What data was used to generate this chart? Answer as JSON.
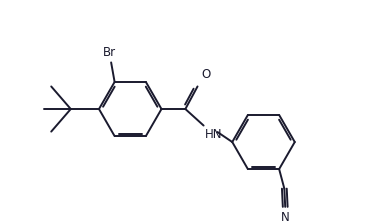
{
  "bg_color": "#ffffff",
  "line_color": "#1a1a2e",
  "line_width": 1.4,
  "dbo": 0.055,
  "font_size": 8.5,
  "figsize": [
    3.69,
    2.24
  ],
  "dpi": 100,
  "ring_r": 0.72,
  "xlim": [
    0.0,
    8.5
  ],
  "ylim": [
    1.2,
    5.8
  ]
}
